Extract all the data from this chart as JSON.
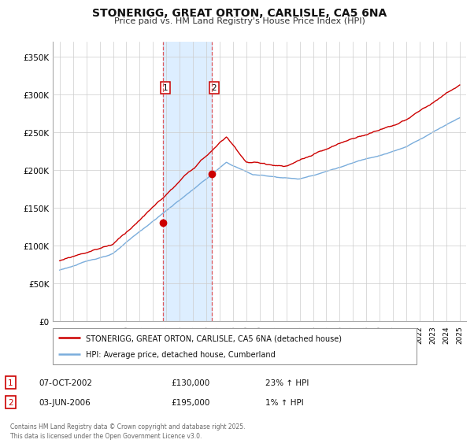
{
  "title": "STONERIGG, GREAT ORTON, CARLISLE, CA5 6NA",
  "subtitle": "Price paid vs. HM Land Registry's House Price Index (HPI)",
  "ylim": [
    0,
    370000
  ],
  "yticks": [
    0,
    50000,
    100000,
    150000,
    200000,
    250000,
    300000,
    350000
  ],
  "ytick_labels": [
    "£0",
    "£50K",
    "£100K",
    "£150K",
    "£200K",
    "£250K",
    "£300K",
    "£350K"
  ],
  "hpi_color": "#7aaddc",
  "price_color": "#cc0000",
  "shade_color": "#ddeeff",
  "marker1_date_x": 2002.77,
  "marker1_y": 130000,
  "marker2_date_x": 2006.42,
  "marker2_y": 195000,
  "vline1_x": 2002.77,
  "vline2_x": 2006.42,
  "legend_label_price": "STONERIGG, GREAT ORTON, CARLISLE, CA5 6NA (detached house)",
  "legend_label_hpi": "HPI: Average price, detached house, Cumberland",
  "annotation1_num": "1",
  "annotation1_date": "07-OCT-2002",
  "annotation1_price": "£130,000",
  "annotation1_hpi": "23% ↑ HPI",
  "annotation2_num": "2",
  "annotation2_date": "03-JUN-2006",
  "annotation2_price": "£195,000",
  "annotation2_hpi": "1% ↑ HPI",
  "footer": "Contains HM Land Registry data © Crown copyright and database right 2025.\nThis data is licensed under the Open Government Licence v3.0.",
  "xlim_start": 1994.5,
  "xlim_end": 2025.5,
  "bg_color": "#ffffff"
}
